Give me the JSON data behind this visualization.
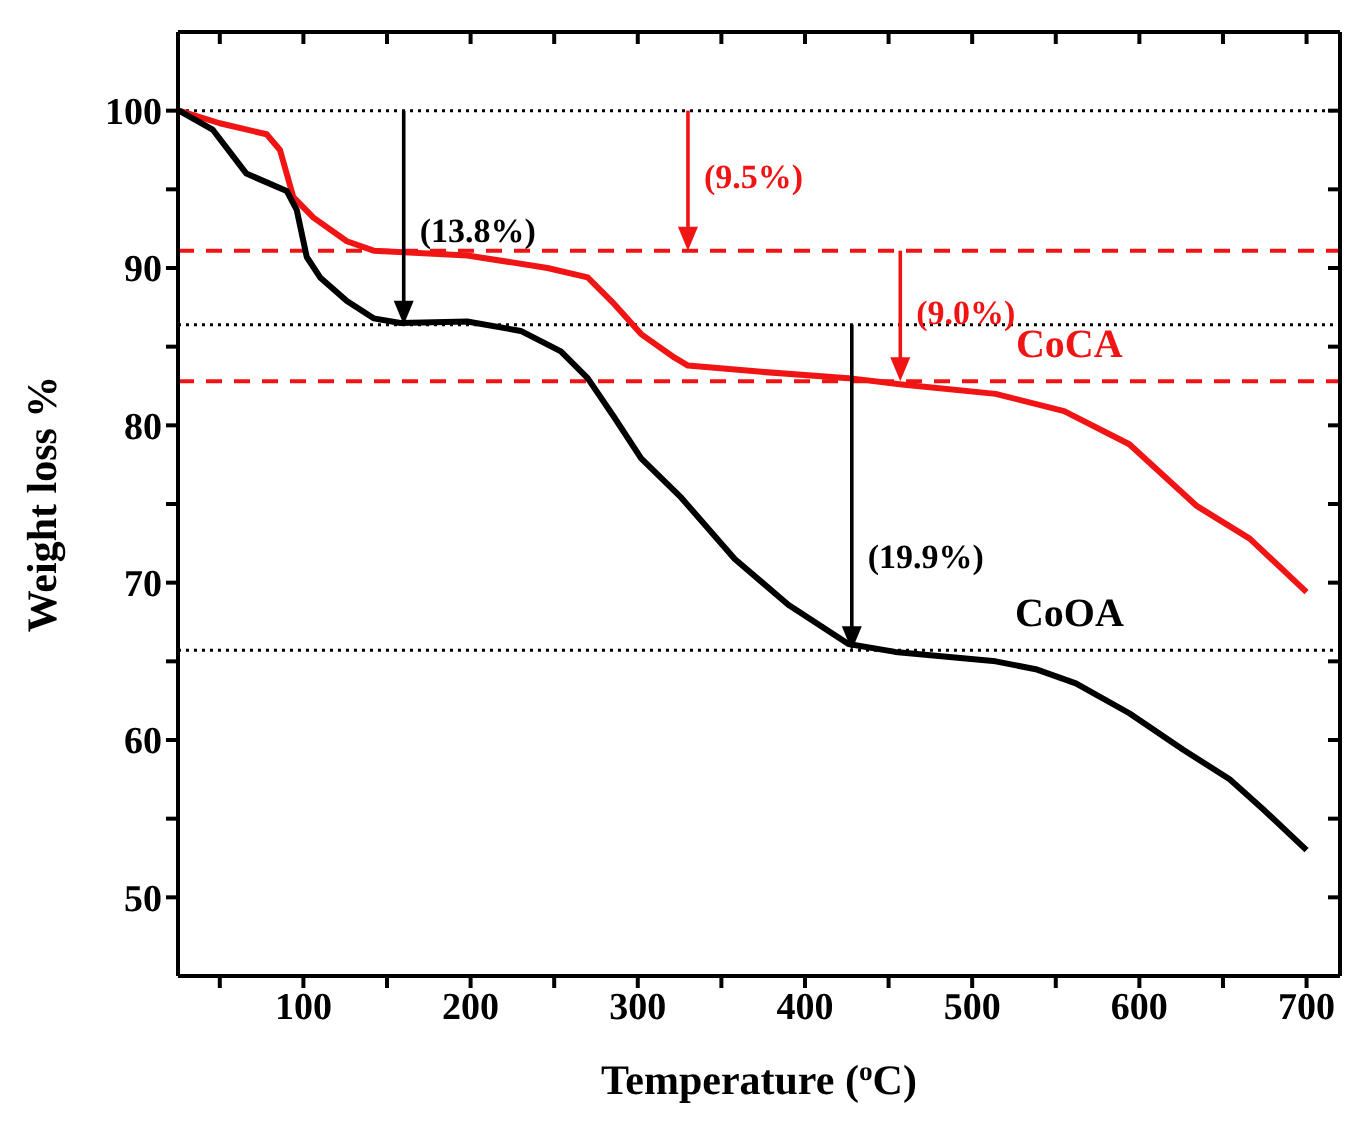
{
  "chart_data": {
    "type": "line",
    "xlabel": "Temperature ($^{o}$C)",
    "ylabel": "Weight loss %",
    "xlim": [
      25,
      720
    ],
    "ylim": [
      45,
      105
    ],
    "xticks": [
      {
        "value": 50,
        "label": null
      },
      100,
      {
        "value": 150,
        "label": null
      },
      200,
      {
        "value": 250,
        "label": null
      },
      300,
      {
        "value": 350,
        "label": null
      },
      400,
      {
        "value": 450,
        "label": null
      },
      500,
      {
        "value": 550,
        "label": null
      },
      600,
      {
        "value": 650,
        "label": null
      },
      700
    ],
    "yticks": [
      50,
      {
        "value": 55,
        "label": null
      },
      60,
      {
        "value": 65,
        "label": null
      },
      70,
      {
        "value": 75,
        "label": null
      },
      80,
      {
        "value": 85,
        "label": null
      },
      90,
      {
        "value": 95,
        "label": null
      },
      100
    ],
    "line_style": "solid",
    "series": [
      {
        "name": "CoCA",
        "color": "#f01414",
        "x": [
          25.6,
          50,
          78,
          86,
          94,
          106,
          126,
          142,
          198,
          246,
          270,
          286,
          302,
          322,
          330,
          374,
          426,
          458,
          514,
          555,
          594,
          634,
          666,
          700
        ],
        "values": [
          100,
          99.2,
          98.5,
          97.5,
          94.5,
          93.2,
          91.7,
          91.1,
          90.8,
          90.0,
          89.4,
          87.7,
          85.8,
          84.3,
          83.8,
          83.4,
          83.0,
          82.6,
          82.0,
          80.9,
          78.8,
          74.9,
          72.8,
          69.4
        ]
      },
      {
        "name": "CoOA",
        "color": "#000000",
        "x": [
          25.6,
          45.7,
          65.9,
          90,
          96,
          102,
          110,
          126,
          142,
          158,
          198,
          230,
          254,
          270,
          286,
          302,
          326,
          358,
          390,
          426,
          454,
          514,
          538,
          562,
          594,
          626,
          654,
          674,
          700
        ],
        "values": [
          100,
          98.8,
          96.0,
          94.9,
          93.7,
          90.7,
          89.4,
          87.9,
          86.8,
          86.5,
          86.6,
          86.0,
          84.7,
          83.0,
          80.5,
          77.9,
          75.4,
          71.5,
          68.6,
          66.1,
          65.6,
          65.0,
          64.5,
          63.6,
          61.7,
          59.4,
          57.5,
          55.6,
          53.0
        ]
      }
    ],
    "ref_lines": [
      {
        "axis": "y",
        "value": 100,
        "color": "#000000",
        "line_style": "dotted"
      },
      {
        "axis": "y",
        "value": 91.1,
        "color": "#f01414",
        "line_style": "dashed"
      },
      {
        "axis": "y",
        "value": 86.4,
        "color": "#000000",
        "line_style": "dotted"
      },
      {
        "axis": "y",
        "value": 82.8,
        "color": "#f01414",
        "line_style": "dashed"
      },
      {
        "axis": "y",
        "value": 65.7,
        "color": "#000000",
        "line_style": "dotted"
      }
    ],
    "annotations": [
      {
        "text": "(13.8%)",
        "x": 160,
        "y": 86.4
      },
      {
        "text": "(9.5%)",
        "x": 330,
        "y": 91.1
      },
      {
        "text": "(9.0%)",
        "x": 457,
        "y": 82.8
      },
      {
        "text": "(19.9%)",
        "x": 428,
        "y": 65.7
      }
    ]
  }
}
